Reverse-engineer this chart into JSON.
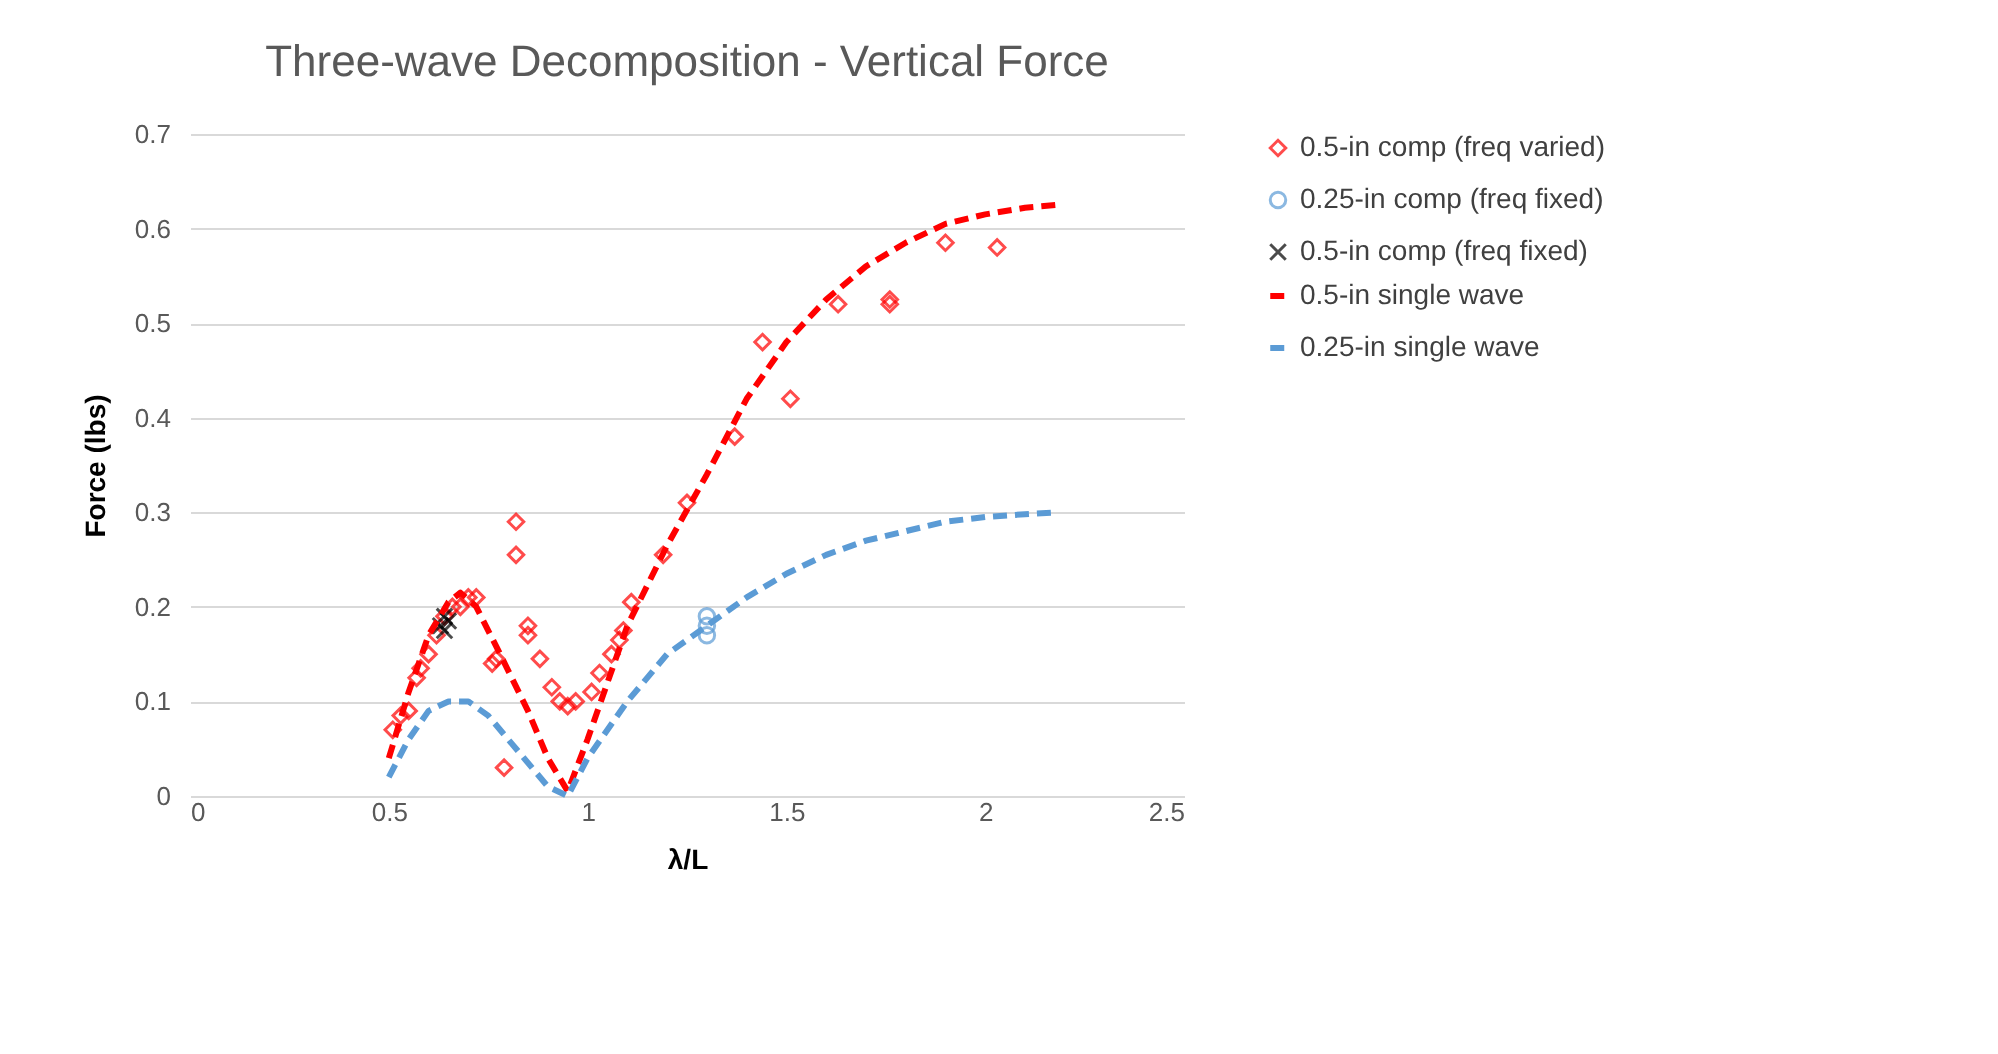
{
  "chart_data": {
    "type": "scatter",
    "title": "Three-wave Decomposition - Vertical Force",
    "xlabel": "λ/L",
    "ylabel": "Force (lbs)",
    "xlim": [
      0,
      2.5
    ],
    "xticks": [
      0,
      0.5,
      1,
      1.5,
      2,
      2.5
    ],
    "ylim": [
      0,
      0.7
    ],
    "yticks": [
      0,
      0.1,
      0.2,
      0.3,
      0.4,
      0.5,
      0.6,
      0.7
    ],
    "grid": "y",
    "legend": "right",
    "series": [
      {
        "name": "0.5-in comp (freq varied)",
        "type": "scatter",
        "marker": "diamond",
        "color": "#ff0000",
        "x": [
          0.51,
          0.53,
          0.55,
          0.57,
          0.58,
          0.6,
          0.62,
          0.64,
          0.66,
          0.68,
          0.7,
          0.72,
          0.76,
          0.77,
          0.79,
          0.82,
          0.82,
          0.85,
          0.85,
          0.88,
          0.91,
          0.93,
          0.95,
          0.97,
          1.01,
          1.03,
          1.06,
          1.08,
          1.09,
          1.11,
          1.19,
          1.25,
          1.37,
          1.44,
          1.51,
          1.63,
          1.76,
          1.76,
          1.9,
          2.03
        ],
        "values": [
          0.07,
          0.085,
          0.09,
          0.125,
          0.135,
          0.15,
          0.17,
          0.19,
          0.2,
          0.2,
          0.21,
          0.21,
          0.14,
          0.145,
          0.03,
          0.29,
          0.255,
          0.18,
          0.17,
          0.145,
          0.115,
          0.1,
          0.095,
          0.1,
          0.11,
          0.13,
          0.15,
          0.165,
          0.175,
          0.205,
          0.255,
          0.31,
          0.38,
          0.48,
          0.42,
          0.52,
          0.52,
          0.525,
          0.585,
          0.58
        ]
      },
      {
        "name": "0.25-in comp (freq fixed)",
        "type": "scatter",
        "marker": "circle",
        "color": "#5b9bd5",
        "x": [
          1.3,
          1.3,
          1.3
        ],
        "values": [
          0.17,
          0.18,
          0.19
        ]
      },
      {
        "name": "0.5-in comp (freq fixed)",
        "type": "scatter",
        "marker": "cross",
        "color": "#000000",
        "x": [
          0.63,
          0.64,
          0.64,
          0.65
        ],
        "values": [
          0.18,
          0.175,
          0.19,
          0.185
        ]
      },
      {
        "name": "0.5-in single wave",
        "type": "line",
        "line_style": "dashed",
        "color": "#ff0000",
        "x": [
          0.5,
          0.55,
          0.6,
          0.65,
          0.68,
          0.72,
          0.78,
          0.85,
          0.9,
          0.95,
          1.0,
          1.05,
          1.1,
          1.2,
          1.3,
          1.4,
          1.5,
          1.6,
          1.7,
          1.8,
          1.9,
          2.0,
          2.1,
          2.18
        ],
        "values": [
          0.04,
          0.11,
          0.17,
          0.205,
          0.215,
          0.2,
          0.15,
          0.09,
          0.04,
          0.005,
          0.06,
          0.12,
          0.18,
          0.265,
          0.34,
          0.42,
          0.48,
          0.525,
          0.56,
          0.585,
          0.605,
          0.615,
          0.622,
          0.625
        ]
      },
      {
        "name": "0.25-in single wave",
        "type": "line",
        "line_style": "dashed",
        "color": "#5b9bd5",
        "x": [
          0.5,
          0.55,
          0.6,
          0.65,
          0.7,
          0.75,
          0.8,
          0.85,
          0.9,
          0.95,
          1.0,
          1.1,
          1.2,
          1.3,
          1.4,
          1.5,
          1.6,
          1.7,
          1.8,
          1.9,
          2.0,
          2.1,
          2.18
        ],
        "values": [
          0.02,
          0.06,
          0.09,
          0.1,
          0.1,
          0.085,
          0.06,
          0.035,
          0.01,
          0,
          0.04,
          0.1,
          0.15,
          0.18,
          0.21,
          0.235,
          0.255,
          0.27,
          0.28,
          0.29,
          0.295,
          0.298,
          0.3
        ]
      }
    ]
  }
}
